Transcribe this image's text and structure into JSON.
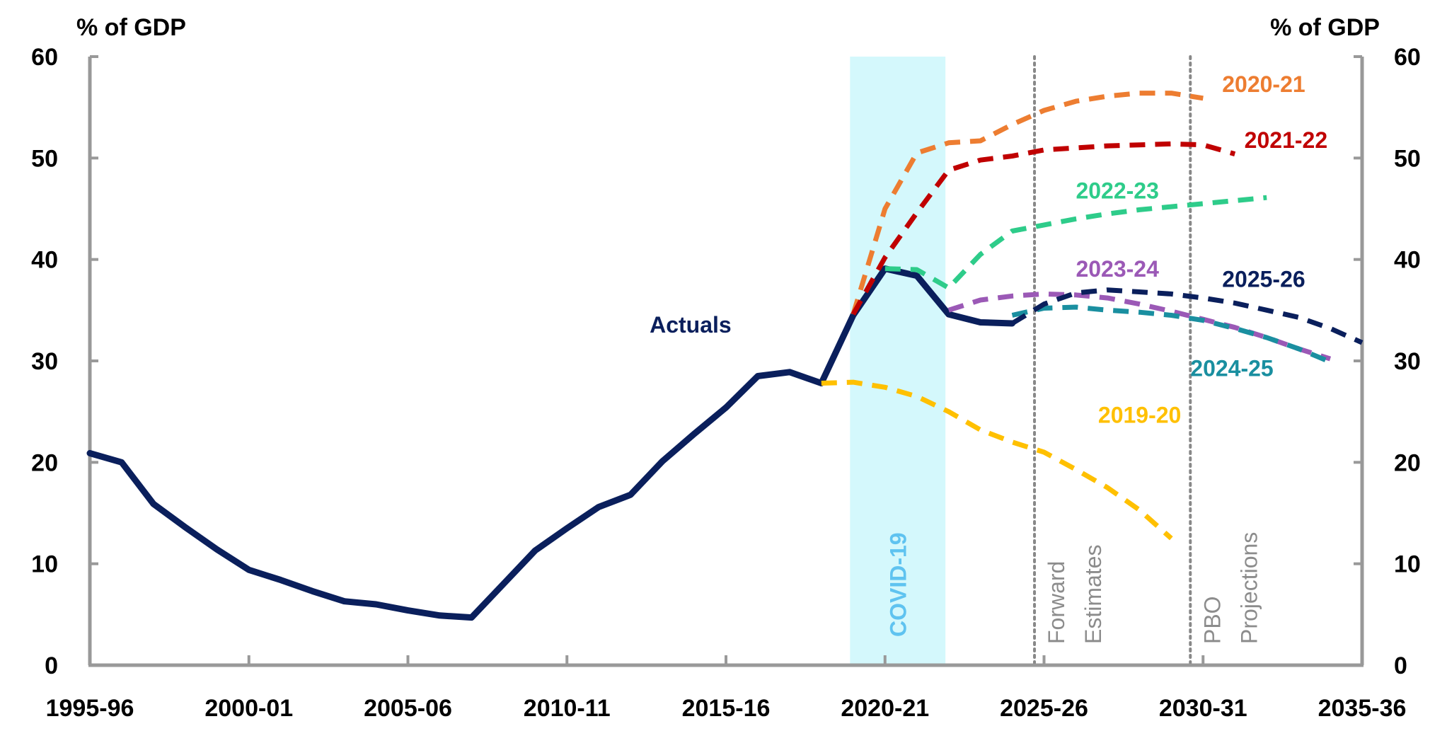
{
  "chart_data": {
    "type": "line",
    "title": "",
    "ylabel_left": "% of GDP",
    "ylabel_right": "% of GDP",
    "xlabel": "",
    "ylim": [
      0,
      60
    ],
    "xlim": [
      1995,
      2035
    ],
    "y_ticks": [
      0,
      10,
      20,
      30,
      40,
      50,
      60
    ],
    "x_ticks": [
      {
        "value": 1995,
        "label": "1995-96"
      },
      {
        "value": 2000,
        "label": "2000-01"
      },
      {
        "value": 2005,
        "label": "2005-06"
      },
      {
        "value": 2010,
        "label": "2010-11"
      },
      {
        "value": 2015,
        "label": "2015-16"
      },
      {
        "value": 2020,
        "label": "2020-21"
      },
      {
        "value": 2025,
        "label": "2025-26"
      },
      {
        "value": 2030,
        "label": "2030-31"
      },
      {
        "value": 2035,
        "label": "2035-36"
      }
    ],
    "grid": false,
    "shaded_region": {
      "label": "COVID-19",
      "x_start": 2018.9,
      "x_end": 2021.9,
      "color": "#d4f8fc",
      "label_color": "#5fc3f0"
    },
    "vertical_markers": [
      {
        "x": 2024.7,
        "lines": [
          "Forward",
          "Estimates"
        ]
      },
      {
        "x": 2029.6,
        "lines": [
          "PBO",
          "Projections"
        ]
      }
    ],
    "series": [
      {
        "name": "Actuals",
        "color": "#0a1f5c",
        "style": "solid",
        "x": [
          1995,
          1996,
          1997,
          1998,
          1999,
          2000,
          2001,
          2002,
          2003,
          2004,
          2005,
          2006,
          2007,
          2008,
          2009,
          2010,
          2011,
          2012,
          2013,
          2014,
          2015,
          2016,
          2017,
          2018,
          2019,
          2020,
          2021,
          2022,
          2023,
          2024
        ],
        "values": [
          20.9,
          20.0,
          15.9,
          13.6,
          11.4,
          9.4,
          8.4,
          7.3,
          6.3,
          6.0,
          5.4,
          4.9,
          4.7,
          8.0,
          11.3,
          13.5,
          15.6,
          16.8,
          20.1,
          22.8,
          25.4,
          28.5,
          28.9,
          27.8,
          34.5,
          39.1,
          38.4,
          34.6,
          33.8,
          33.7
        ]
      },
      {
        "name": "2019-20",
        "color": "#ffc000",
        "style": "dashed",
        "x": [
          2018,
          2019,
          2020,
          2021,
          2022,
          2023,
          2024,
          2025,
          2026,
          2027,
          2028,
          2029
        ],
        "values": [
          27.8,
          27.9,
          27.4,
          26.5,
          25.0,
          23.2,
          22.0,
          21.0,
          19.3,
          17.5,
          15.3,
          12.5
        ]
      },
      {
        "name": "2020-21",
        "color": "#ed7d31",
        "style": "dashed",
        "x": [
          2019,
          2020,
          2021,
          2022,
          2023,
          2024,
          2025,
          2026,
          2027,
          2028,
          2029,
          2030
        ],
        "values": [
          34.6,
          45.0,
          50.5,
          51.5,
          51.7,
          53.3,
          54.7,
          55.6,
          56.1,
          56.4,
          56.4,
          55.9
        ]
      },
      {
        "name": "2021-22",
        "color": "#c00000",
        "style": "dashed",
        "x": [
          2019,
          2020,
          2021,
          2022,
          2023,
          2024,
          2025,
          2026,
          2027,
          2028,
          2029,
          2030,
          2031
        ],
        "values": [
          34.6,
          40.2,
          44.6,
          48.8,
          49.8,
          50.2,
          50.8,
          51.0,
          51.2,
          51.3,
          51.4,
          51.3,
          50.4
        ]
      },
      {
        "name": "2022-23",
        "color": "#2ecc8a",
        "style": "dashed",
        "x": [
          2020,
          2021,
          2022,
          2023,
          2024,
          2025,
          2026,
          2027,
          2028,
          2029,
          2030,
          2031,
          2032
        ],
        "values": [
          39.1,
          39.0,
          37.2,
          40.5,
          42.8,
          43.4,
          44.0,
          44.5,
          44.9,
          45.2,
          45.5,
          45.8,
          46.1
        ]
      },
      {
        "name": "2023-24",
        "color": "#9b59b6",
        "style": "dashed",
        "x": [
          2022,
          2023,
          2024,
          2025,
          2026,
          2027,
          2028,
          2029,
          2030,
          2031,
          2032,
          2033,
          2034
        ],
        "values": [
          35.0,
          36.0,
          36.4,
          36.6,
          36.5,
          36.2,
          35.6,
          34.9,
          34.1,
          33.3,
          32.3,
          31.2,
          30.2
        ]
      },
      {
        "name": "2024-25",
        "color": "#1a8fa0",
        "style": "dashed",
        "x": [
          2024,
          2025,
          2026,
          2027,
          2028,
          2029,
          2030,
          2031,
          2032,
          2033,
          2034
        ],
        "values": [
          34.5,
          35.2,
          35.3,
          35.0,
          34.8,
          34.5,
          34.0,
          33.2,
          32.3,
          31.2,
          29.9
        ]
      },
      {
        "name": "2025-26",
        "color": "#0a1f5c",
        "style": "dashed",
        "x": [
          2024,
          2025,
          2026,
          2027,
          2028,
          2029,
          2030,
          2031,
          2032,
          2033,
          2034,
          2035
        ],
        "values": [
          33.7,
          35.6,
          36.7,
          37.0,
          36.8,
          36.6,
          36.2,
          35.7,
          35.0,
          34.3,
          33.2,
          31.8
        ]
      }
    ],
    "series_labels": [
      {
        "text": "Actuals",
        "color": "#0a1f5c",
        "x": 2012.6,
        "y": 32.8
      },
      {
        "text": "2019-20",
        "color": "#ffc000",
        "x": 2026.7,
        "y": 23.9
      },
      {
        "text": "2020-21",
        "color": "#ed7d31",
        "x": 2030.6,
        "y": 56.5
      },
      {
        "text": "2021-22",
        "color": "#c00000",
        "x": 2031.3,
        "y": 51.0
      },
      {
        "text": "2022-23",
        "color": "#2ecc8a",
        "x": 2026.0,
        "y": 46.0
      },
      {
        "text": "2023-24",
        "color": "#9b59b6",
        "x": 2026.0,
        "y": 38.3
      },
      {
        "text": "2025-26",
        "color": "#0a1f5c",
        "x": 2030.6,
        "y": 37.3
      },
      {
        "text": "2024-25",
        "color": "#1a8fa0",
        "x": 2029.6,
        "y": 28.5
      }
    ]
  }
}
